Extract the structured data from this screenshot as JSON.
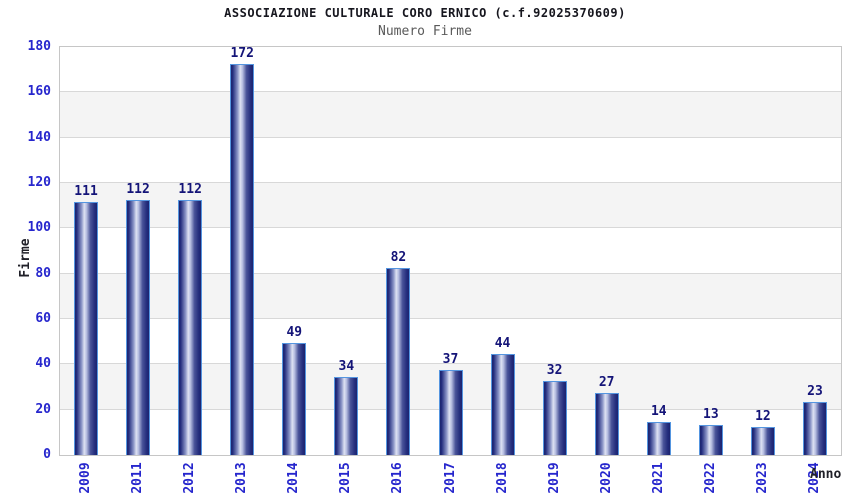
{
  "chart_data": {
    "type": "bar",
    "title": "ASSOCIAZIONE CULTURALE CORO ERNICO (c.f.92025370609)",
    "subtitle": "Numero Firme",
    "xlabel": "Anno",
    "ylabel": "Firme",
    "categories": [
      "2009",
      "2011",
      "2012",
      "2013",
      "2014",
      "2015",
      "2016",
      "2017",
      "2018",
      "2019",
      "2020",
      "2021",
      "2022",
      "2023",
      "2024"
    ],
    "values": [
      111,
      112,
      112,
      172,
      49,
      34,
      82,
      37,
      44,
      32,
      27,
      14,
      13,
      12,
      23
    ],
    "ylim": [
      0,
      180
    ],
    "ytick_step": 20,
    "grid": true,
    "legend": false,
    "band_alternating": true,
    "colors": {
      "bar_dark": "#1c246e",
      "bar_highlight": "#dde1f2",
      "bar_border": "#5495e0",
      "axis_tick_text": "#2626cd",
      "value_label_text": "#141478",
      "title_text": "#16161e",
      "subtitle_text": "#5a5a5a",
      "grid_line": "#d8d8d8",
      "band_fill": "#f4f4f4",
      "plot_border": "#c6c6c6",
      "background": "#ffffff"
    }
  }
}
